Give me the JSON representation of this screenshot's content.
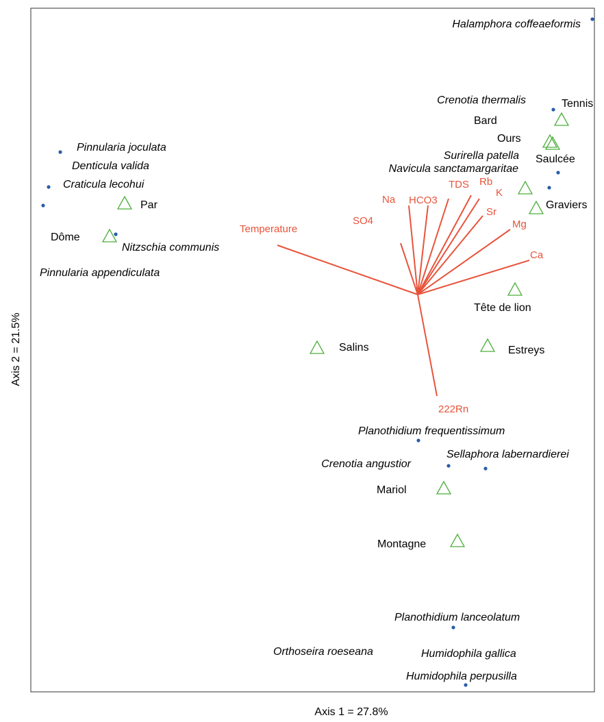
{
  "chart_data": {
    "type": "biplot",
    "x_label": "Axis 1 = 27.8%",
    "y_label": "Axis 2 = 21.5%",
    "species": [
      "Halamphora coffeaeformis",
      "Crenotia thermalis",
      "Pinnularia joculata",
      "Denticula valida",
      "Craticula lecohui",
      "Nitzschia communis",
      "Pinnularia appendiculata",
      "Surirella patella",
      "Navicula sanctamargaritae",
      "Planothidium frequentissimum",
      "Crenotia angustior",
      "Sellaphora labernardierei",
      "Planothidium lanceolatum",
      "Orthoseira roeseana",
      "Humidophila gallica",
      "Humidophila perpusilla"
    ],
    "sites": [
      "Tennis",
      "Bard",
      "Ours",
      "Saulcée",
      "Graviers",
      "Par",
      "Dôme",
      "Tête de lion",
      "Salins",
      "Estreys",
      "Mariol",
      "Montagne"
    ],
    "variables": [
      "Temperature",
      "SO4",
      "Na",
      "HCO3",
      "TDS",
      "Rb",
      "K",
      "Sr",
      "Mg",
      "Ca",
      "222Rn"
    ],
    "species_color": "#2a5caa",
    "site_color": "#4caf3a",
    "variable_color": "#e8533a"
  }
}
